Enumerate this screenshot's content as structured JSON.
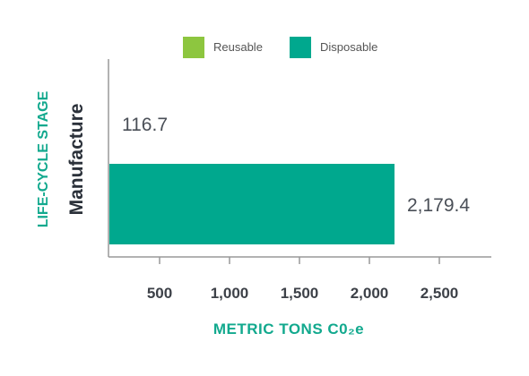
{
  "chart_data": {
    "type": "bar",
    "orientation": "horizontal",
    "categories": [
      "Manufacture"
    ],
    "series": [
      {
        "name": "Reusable",
        "values": [
          116.7
        ],
        "value_labels": [
          "116.7"
        ],
        "color": "#8dc63f"
      },
      {
        "name": "Disposable",
        "values": [
          2179.4
        ],
        "value_labels": [
          "2,179.4"
        ],
        "color": "#00a88e"
      }
    ],
    "xlabel": "METRIC TONS C0₂e",
    "ylabel": "LIFE-CYCLE STAGE",
    "xticks": [
      500,
      1000,
      1500,
      2000,
      2500
    ],
    "xtick_labels": [
      "500",
      "1,000",
      "1,500",
      "2,000",
      "2,500"
    ],
    "xlim": [
      0,
      2500
    ],
    "grid": false,
    "legend_position": "top-center"
  },
  "colors": {
    "axis": "#999999",
    "axis_title": "#12a98e",
    "text": "#3d4148"
  }
}
